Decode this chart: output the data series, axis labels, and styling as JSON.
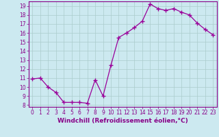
{
  "x": [
    0,
    1,
    2,
    3,
    4,
    5,
    6,
    7,
    8,
    9,
    10,
    11,
    12,
    13,
    14,
    15,
    16,
    17,
    18,
    19,
    20,
    21,
    22,
    23
  ],
  "y": [
    10.9,
    11.0,
    10.0,
    9.4,
    8.3,
    8.3,
    8.3,
    8.2,
    10.8,
    9.0,
    12.4,
    15.5,
    16.0,
    16.6,
    17.3,
    19.2,
    18.7,
    18.5,
    18.7,
    18.3,
    18.0,
    17.1,
    16.4,
    15.8
  ],
  "line_color": "#990099",
  "marker": "+",
  "markersize": 4,
  "linewidth": 0.9,
  "xlabel": "Windchill (Refroidissement éolien,°C)",
  "xlabel_fontsize": 6.5,
  "xlim": [
    -0.5,
    23.5
  ],
  "ylim": [
    7.8,
    19.5
  ],
  "yticks": [
    8,
    9,
    10,
    11,
    12,
    13,
    14,
    15,
    16,
    17,
    18,
    19
  ],
  "xticks": [
    0,
    1,
    2,
    3,
    4,
    5,
    6,
    7,
    8,
    9,
    10,
    11,
    12,
    13,
    14,
    15,
    16,
    17,
    18,
    19,
    20,
    21,
    22,
    23
  ],
  "background_color": "#cce9f0",
  "grid_color": "#aacccc",
  "tick_color": "#880088",
  "tick_fontsize": 5.5,
  "spine_color": "#880088"
}
